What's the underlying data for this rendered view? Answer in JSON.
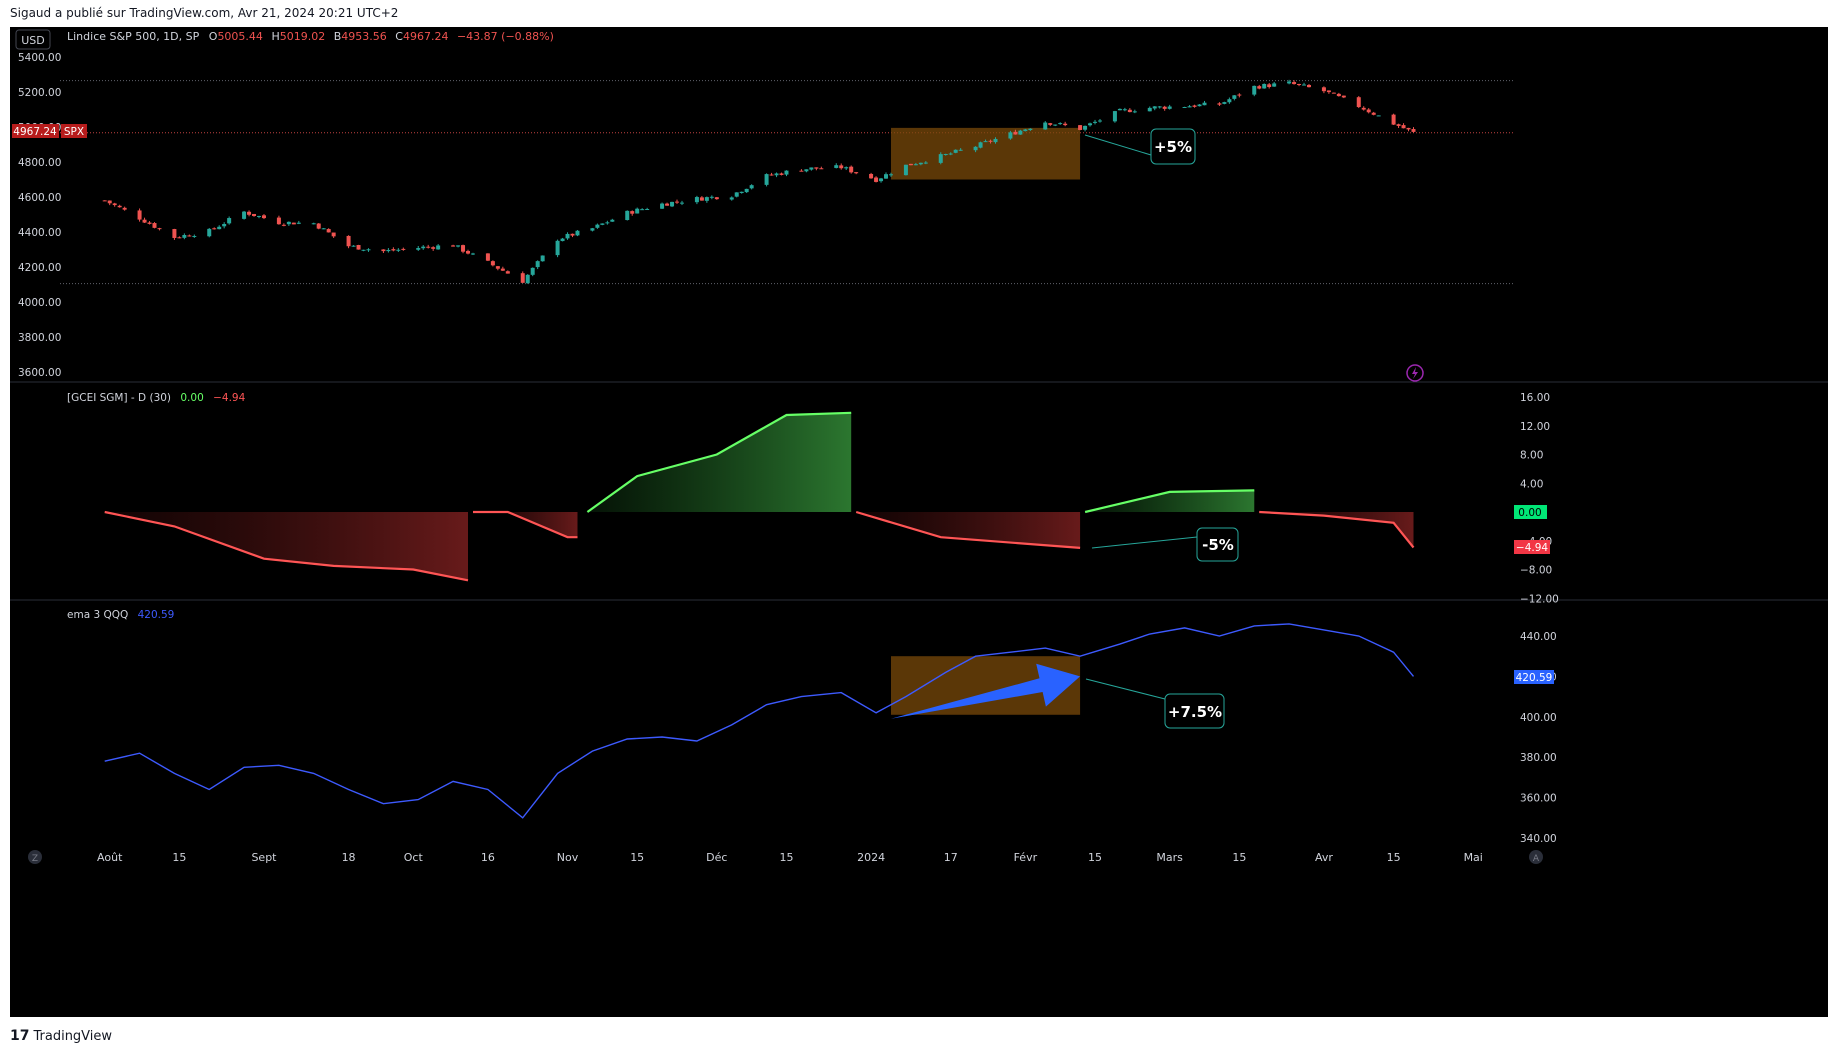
{
  "header": {
    "published_by": "Sigaud a publié sur TradingView.com, Avr 21, 2024 20:21 UTC+2"
  },
  "footer": {
    "brand": "TradingView",
    "logo": "17"
  },
  "currency_button": "USD",
  "colors": {
    "background": "#000000",
    "bull": "#26a69a",
    "bear": "#ef5350",
    "green_line": "#66ff66",
    "red_line": "#ff5555",
    "ema_line": "#3d5afe",
    "highlight": "#7a4a0a",
    "callout_border": "#26a69a",
    "arrow": "#2962ff"
  },
  "price_pane": {
    "legend": {
      "symbol": "Lindice S&P 500, 1D, SP",
      "o_label": "O",
      "o": "5005.44",
      "h_label": "H",
      "h": "5019.02",
      "b_label": "B",
      "b": "4953.56",
      "c_label": "C",
      "c": "4967.24",
      "change": "−43.87 (−0.88%)"
    },
    "last_price": "4967.24",
    "ticker_tag": "SPX",
    "callout": "+5%"
  },
  "indicator_pane": {
    "legend": {
      "name": "[GCEI SGM] - D (30)",
      "v1": "0.00",
      "v2": "−4.94"
    },
    "tag_green": "0.00",
    "tag_red": "−4.94",
    "callout": "-5%"
  },
  "ema_pane": {
    "legend": {
      "name": "ema 3 QQQ",
      "value": "420.59"
    },
    "tag": "420.59",
    "callout": "+7.5%"
  },
  "chart_data": [
    {
      "type": "candlestick",
      "title": "Lindice S&P 500, 1D, SP",
      "ylim": [
        3500,
        5500
      ],
      "y_ticks": [
        "5400.00",
        "5200.00",
        "5000.00",
        "4800.00",
        "4600.00",
        "4400.00",
        "4200.00",
        "4000.00",
        "3800.00",
        "3600.00"
      ],
      "y_tick_values": [
        5400,
        5200,
        5000,
        4800,
        4600,
        4400,
        4200,
        4000,
        3800,
        3600
      ],
      "x_ticks": [
        "Août",
        "15",
        "Sept",
        "18",
        "Oct",
        "16",
        "Nov",
        "15",
        "Déc",
        "15",
        "2024",
        "17",
        "Févr",
        "15",
        "Mars",
        "15",
        "Avr",
        "15",
        "Mai"
      ],
      "x_tick_dates": [
        "2023-08-01",
        "2023-08-15",
        "2023-09-01",
        "2023-09-18",
        "2023-10-01",
        "2023-10-16",
        "2023-11-01",
        "2023-11-15",
        "2023-12-01",
        "2023-12-15",
        "2024-01-01",
        "2024-01-17",
        "2024-02-01",
        "2024-02-15",
        "2024-03-01",
        "2024-03-15",
        "2024-04-01",
        "2024-04-15",
        "2024-05-01"
      ],
      "levels": [
        5265,
        4967,
        4105
      ],
      "highlight": {
        "from": "2024-01-05",
        "to": "2024-02-12",
        "low": 4700,
        "high": 4995
      },
      "series": [
        {
          "name": "close",
          "dates": [
            "2023-07-31",
            "2023-08-07",
            "2023-08-14",
            "2023-08-21",
            "2023-08-28",
            "2023-09-04",
            "2023-09-11",
            "2023-09-18",
            "2023-09-25",
            "2023-10-02",
            "2023-10-09",
            "2023-10-16",
            "2023-10-23",
            "2023-10-30",
            "2023-11-06",
            "2023-11-13",
            "2023-11-20",
            "2023-11-27",
            "2023-12-04",
            "2023-12-11",
            "2023-12-18",
            "2023-12-26",
            "2024-01-02",
            "2024-01-08",
            "2024-01-16",
            "2024-01-22",
            "2024-01-29",
            "2024-02-05",
            "2024-02-12",
            "2024-02-20",
            "2024-02-26",
            "2024-03-04",
            "2024-03-11",
            "2024-03-18",
            "2024-03-25",
            "2024-04-01",
            "2024-04-08",
            "2024-04-15",
            "2024-04-19"
          ],
          "values": [
            4580,
            4480,
            4370,
            4405,
            4515,
            4455,
            4450,
            4320,
            4290,
            4310,
            4325,
            4225,
            4120,
            4360,
            4420,
            4510,
            4560,
            4590,
            4610,
            4720,
            4760,
            4770,
            4700,
            4780,
            4840,
            4890,
            4960,
            5030,
            4990,
            5090,
            5110,
            5120,
            5130,
            5230,
            5250,
            5205,
            5120,
            5020,
            4967
          ]
        }
      ]
    },
    {
      "type": "area",
      "title": "[GCEI SGM] - D (30)",
      "ylim": [
        -12,
        16
      ],
      "y_ticks": [
        "16.00",
        "12.00",
        "8.00",
        "4.00",
        "0.00",
        "−4.00",
        "−8.00",
        "−12.00"
      ],
      "y_tick_values": [
        16,
        12,
        8,
        4,
        0,
        -4,
        -8,
        -12
      ],
      "series": [
        {
          "name": "GCEI",
          "dates": [
            "2023-07-31",
            "2023-08-14",
            "2023-09-01",
            "2023-09-15",
            "2023-10-01",
            "2023-10-12",
            "2023-10-13",
            "2023-10-20",
            "2023-11-01",
            "2023-11-03",
            "2023-11-05",
            "2023-11-15",
            "2023-12-01",
            "2023-12-15",
            "2023-12-28",
            "2023-12-29",
            "2024-01-15",
            "2024-02-12",
            "2024-02-13",
            "2024-03-01",
            "2024-03-18",
            "2024-03-19",
            "2024-04-01",
            "2024-04-15",
            "2024-04-19"
          ],
          "values": [
            0.0,
            -2.0,
            -6.5,
            -7.5,
            -8.0,
            -9.5,
            0.0,
            0.0,
            -3.5,
            -3.5,
            0.0,
            5.0,
            8.0,
            13.5,
            13.8,
            0.0,
            -3.5,
            -5.0,
            0.0,
            2.8,
            3.0,
            0.0,
            -0.5,
            -1.5,
            -4.94
          ]
        }
      ]
    },
    {
      "type": "line",
      "title": "ema 3 QQQ",
      "ylim": [
        335,
        450
      ],
      "y_ticks": [
        "440.00",
        "420.00",
        "400.00",
        "380.00",
        "360.00",
        "340.00"
      ],
      "y_tick_values": [
        440,
        420,
        400,
        380,
        360,
        340
      ],
      "highlight": {
        "from": "2024-01-05",
        "to": "2024-02-12",
        "low": 401,
        "high": 430
      },
      "arrow": {
        "from": "2024-01-05",
        "to": "2024-02-12",
        "y_from": 399,
        "y_to": 420
      },
      "series": [
        {
          "name": "ema 3 QQQ",
          "dates": [
            "2023-07-31",
            "2023-08-07",
            "2023-08-14",
            "2023-08-21",
            "2023-08-28",
            "2023-09-04",
            "2023-09-11",
            "2023-09-18",
            "2023-09-25",
            "2023-10-02",
            "2023-10-09",
            "2023-10-16",
            "2023-10-23",
            "2023-10-30",
            "2023-11-06",
            "2023-11-13",
            "2023-11-20",
            "2023-11-27",
            "2023-12-04",
            "2023-12-11",
            "2023-12-18",
            "2023-12-26",
            "2024-01-02",
            "2024-01-08",
            "2024-01-16",
            "2024-01-22",
            "2024-01-29",
            "2024-02-05",
            "2024-02-12",
            "2024-02-20",
            "2024-02-26",
            "2024-03-04",
            "2024-03-11",
            "2024-03-18",
            "2024-03-25",
            "2024-04-01",
            "2024-04-08",
            "2024-04-15",
            "2024-04-19"
          ],
          "values": [
            378,
            382,
            372,
            364,
            375,
            376,
            372,
            364,
            357,
            359,
            368,
            364,
            350,
            372,
            383,
            389,
            390,
            388,
            396,
            406,
            410,
            412,
            402,
            410,
            422,
            430,
            432,
            434,
            430,
            436,
            441,
            444,
            440,
            445,
            446,
            443,
            440,
            432,
            420
          ]
        }
      ]
    }
  ]
}
